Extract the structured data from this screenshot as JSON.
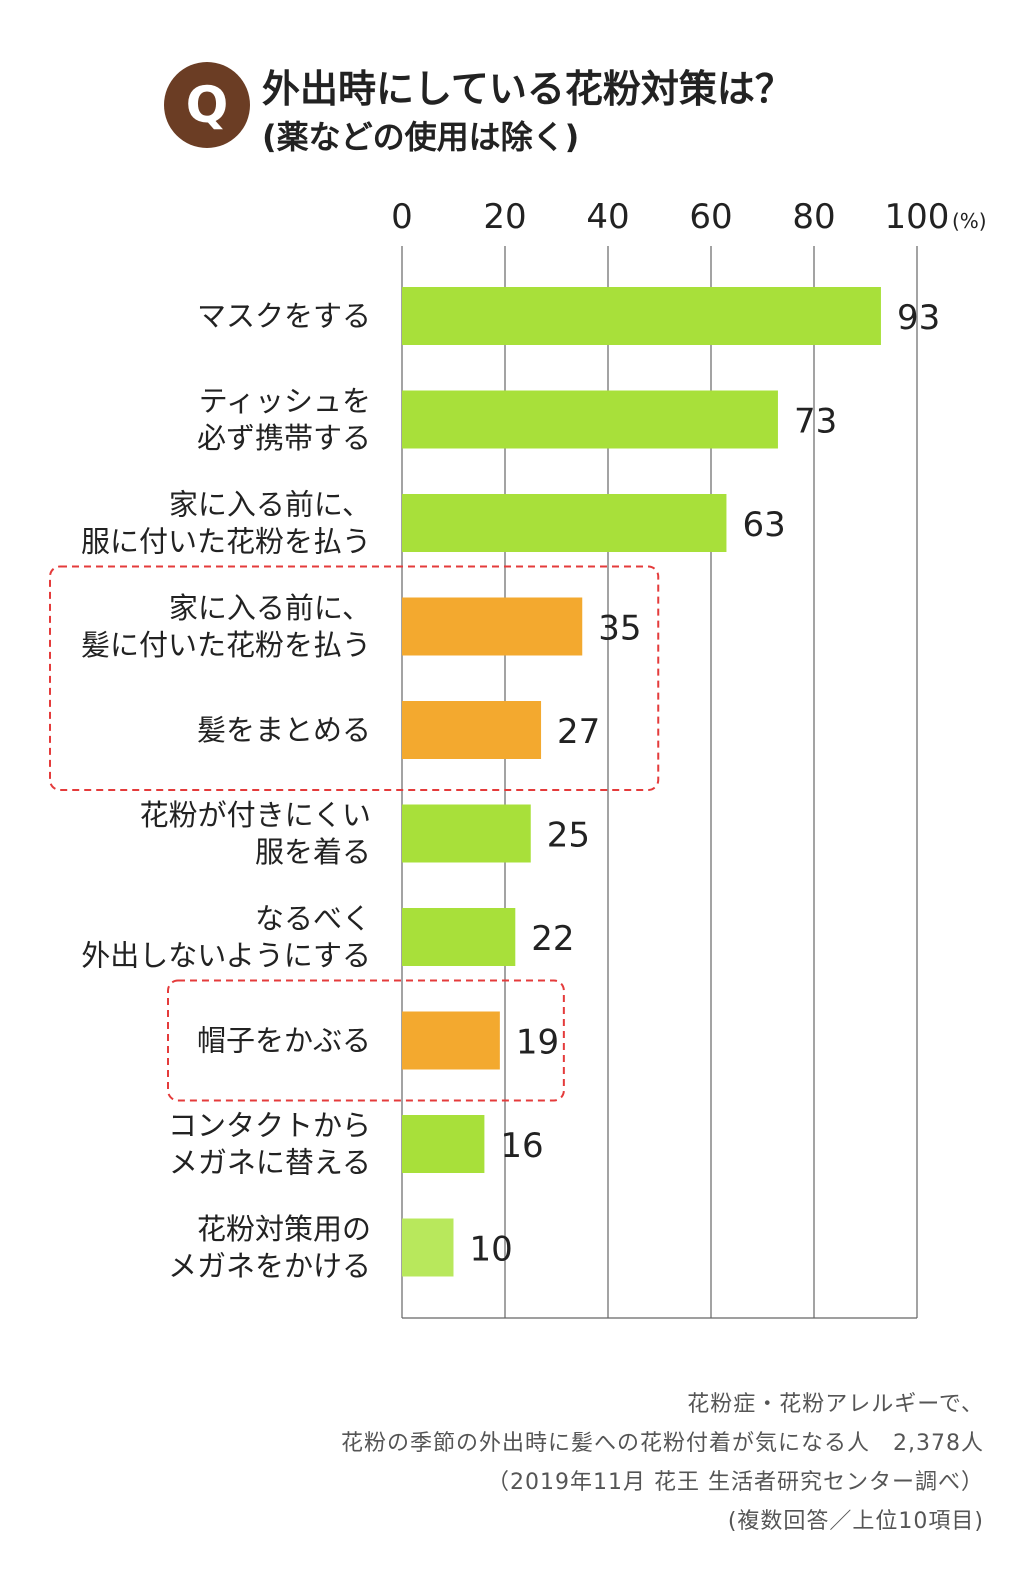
{
  "header": {
    "badge": "Q",
    "title": "外出時にしている花粉対策は？",
    "subtitle": "(薬などの使用は除く)"
  },
  "chart_data": {
    "type": "bar",
    "orientation": "horizontal",
    "categories": [
      [
        "マスクをする"
      ],
      [
        "ティッシュを",
        "必ず携帯する"
      ],
      [
        "家に入る前に、",
        "服に付いた花粉を払う"
      ],
      [
        "家に入る前に、",
        "髪に付いた花粉を払う"
      ],
      [
        "髪をまとめる"
      ],
      [
        "花粉が付きにくい",
        "服を着る"
      ],
      [
        "なるべく",
        "外出しないようにする"
      ],
      [
        "帽子をかぶる"
      ],
      [
        "コンタクトから",
        "メガネに替える"
      ],
      [
        "花粉対策用の",
        "メガネをかける"
      ]
    ],
    "values": [
      93,
      73,
      63,
      35,
      27,
      25,
      22,
      19,
      16,
      10
    ],
    "bar_colors": [
      "#a8e03a",
      "#a8e03a",
      "#a8e03a",
      "#f3a92f",
      "#f3a92f",
      "#a8e03a",
      "#a8e03a",
      "#f3a92f",
      "#a8e03a",
      "#b8e85c"
    ],
    "highlighted_groups": [
      [
        3,
        4
      ],
      [
        7
      ]
    ],
    "highlight_color": "#e43b3b",
    "xticks": [
      "0",
      "20",
      "40",
      "60",
      "80",
      "100"
    ],
    "xlim": [
      0,
      100
    ],
    "unit": "(%)",
    "grid": true
  },
  "source": {
    "line1": "花粉症・花粉アレルギーで、",
    "line2": "花粉の季節の外出時に髪への花粉付着が気になる人　2,378人",
    "line3": "（2019年11月 花王 生活者研究センター調べ）",
    "line4": "(複数回答／上位10項目)"
  }
}
